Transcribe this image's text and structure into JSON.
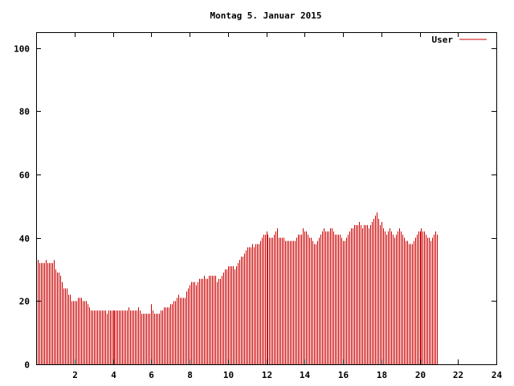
{
  "chart_data": {
    "type": "bar",
    "title": "Montag 5. Januar 2015",
    "xlabel": "",
    "ylabel": "",
    "xlim": [
      0,
      24
    ],
    "ylim": [
      0,
      105
    ],
    "x_ticks": [
      2,
      4,
      6,
      8,
      10,
      12,
      14,
      16,
      18,
      20,
      22,
      24
    ],
    "y_ticks": [
      0,
      20,
      40,
      60,
      80,
      100
    ],
    "grid": false,
    "legend_position": "top-right",
    "interval_minutes": 5,
    "series": [
      {
        "name": "User",
        "color": "#cc0000",
        "values": [
          33,
          33,
          32,
          32,
          32,
          32,
          33,
          32,
          32,
          32,
          32,
          33,
          30,
          29,
          29,
          28,
          26,
          24,
          24,
          24,
          22,
          22,
          20,
          20,
          20,
          20,
          21,
          21,
          21,
          20,
          20,
          20,
          19,
          18,
          17,
          17,
          17,
          17,
          17,
          17,
          17,
          17,
          17,
          17,
          16,
          17,
          17,
          17,
          17,
          17,
          17,
          17,
          17,
          17,
          17,
          17,
          17,
          17,
          18,
          17,
          17,
          17,
          17,
          17,
          18,
          17,
          16,
          16,
          16,
          16,
          16,
          16,
          19,
          17,
          16,
          16,
          16,
          16,
          17,
          17,
          18,
          18,
          18,
          18,
          19,
          19,
          20,
          20,
          21,
          22,
          21,
          21,
          21,
          21,
          23,
          24,
          25,
          26,
          26,
          26,
          25,
          26,
          27,
          27,
          27,
          28,
          27,
          27,
          28,
          28,
          28,
          28,
          28,
          26,
          27,
          27,
          28,
          29,
          30,
          30,
          31,
          31,
          31,
          31,
          30,
          31,
          32,
          33,
          34,
          34,
          35,
          36,
          37,
          37,
          37,
          38,
          37,
          38,
          38,
          38,
          39,
          40,
          41,
          41,
          42,
          41,
          40,
          40,
          40,
          41,
          42,
          43,
          40,
          40,
          40,
          40,
          39,
          39,
          39,
          39,
          39,
          39,
          39,
          40,
          41,
          41,
          41,
          43,
          42,
          42,
          41,
          40,
          40,
          39,
          38,
          38,
          39,
          40,
          41,
          42,
          43,
          42,
          42,
          42,
          43,
          43,
          42,
          41,
          41,
          41,
          41,
          40,
          39,
          39,
          40,
          41,
          42,
          43,
          43,
          44,
          44,
          44,
          45,
          44,
          43,
          44,
          44,
          44,
          43,
          44,
          45,
          46,
          47,
          48,
          46,
          44,
          45,
          43,
          42,
          41,
          42,
          43,
          42,
          41,
          40,
          41,
          42,
          43,
          42,
          41,
          40,
          39,
          39,
          38,
          38,
          38,
          39,
          40,
          41,
          42,
          42,
          43,
          42,
          42,
          41,
          40,
          40,
          39,
          40,
          41,
          42,
          41
        ]
      }
    ]
  }
}
